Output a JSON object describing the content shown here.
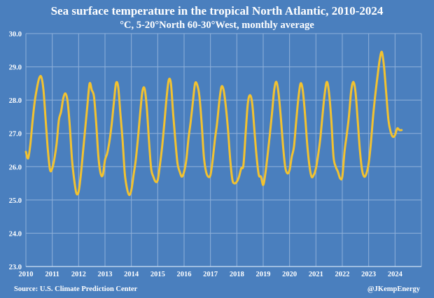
{
  "colors": {
    "background": "#4a7fbe",
    "line": "#f2c230",
    "grid": "#8fb0da",
    "text": "#ffffff"
  },
  "chart_data": {
    "type": "line",
    "title": "Sea surface temperature in the tropical North Atlantic, 2010-2024",
    "subtitle": "°C, 5-20°North 60-30°West, monthly average",
    "xlabel": "",
    "ylabel": "",
    "ylim": [
      23.0,
      30.0
    ],
    "yticks": [
      "23.0",
      "24.0",
      "25.0",
      "26.0",
      "27.0",
      "28.0",
      "29.0",
      "30.0"
    ],
    "xticks": [
      "2010",
      "2011",
      "2012",
      "2013",
      "2014",
      "2015",
      "2016",
      "2017",
      "2018",
      "2019",
      "2020",
      "2021",
      "2022",
      "2023",
      "2024"
    ],
    "xlim": [
      "2010-01",
      "2024-12"
    ],
    "grid": true,
    "legend": "none",
    "source": "Source: U.S. Climate Prediction Center",
    "credit": "@JKempEnergy",
    "series": [
      {
        "x": [
          "2010-01",
          "2010-02",
          "2010-03",
          "2010-04",
          "2010-05",
          "2010-06",
          "2010-07",
          "2010-08",
          "2010-09",
          "2010-10",
          "2010-11",
          "2010-12",
          "2011-01",
          "2011-02",
          "2011-03",
          "2011-04",
          "2011-05",
          "2011-06",
          "2011-07",
          "2011-08",
          "2011-09",
          "2011-10",
          "2011-11",
          "2011-12",
          "2012-01",
          "2012-02",
          "2012-03",
          "2012-04",
          "2012-05",
          "2012-06",
          "2012-07",
          "2012-08",
          "2012-09",
          "2012-10",
          "2012-11",
          "2012-12",
          "2013-01",
          "2013-02",
          "2013-03",
          "2013-04",
          "2013-05",
          "2013-06",
          "2013-07",
          "2013-08",
          "2013-09",
          "2013-10",
          "2013-11",
          "2013-12",
          "2014-01",
          "2014-02",
          "2014-03",
          "2014-04",
          "2014-05",
          "2014-06",
          "2014-07",
          "2014-08",
          "2014-09",
          "2014-10",
          "2014-11",
          "2014-12",
          "2015-01",
          "2015-02",
          "2015-03",
          "2015-04",
          "2015-05",
          "2015-06",
          "2015-07",
          "2015-08",
          "2015-09",
          "2015-10",
          "2015-11",
          "2015-12",
          "2016-01",
          "2016-02",
          "2016-03",
          "2016-04",
          "2016-05",
          "2016-06",
          "2016-07",
          "2016-08",
          "2016-09",
          "2016-10",
          "2016-11",
          "2016-12",
          "2017-01",
          "2017-02",
          "2017-03",
          "2017-04",
          "2017-05",
          "2017-06",
          "2017-07",
          "2017-08",
          "2017-09",
          "2017-10",
          "2017-11",
          "2017-12",
          "2018-01",
          "2018-02",
          "2018-03",
          "2018-04",
          "2018-05",
          "2018-06",
          "2018-07",
          "2018-08",
          "2018-09",
          "2018-10",
          "2018-11",
          "2018-12",
          "2019-01",
          "2019-02",
          "2019-03",
          "2019-04",
          "2019-05",
          "2019-06",
          "2019-07",
          "2019-08",
          "2019-09",
          "2019-10",
          "2019-11",
          "2019-12",
          "2020-01",
          "2020-02",
          "2020-03",
          "2020-04",
          "2020-05",
          "2020-06",
          "2020-07",
          "2020-08",
          "2020-09",
          "2020-10",
          "2020-11",
          "2020-12",
          "2021-01",
          "2021-02",
          "2021-03",
          "2021-04",
          "2021-05",
          "2021-06",
          "2021-07",
          "2021-08",
          "2021-09",
          "2021-10",
          "2021-11",
          "2021-12",
          "2022-01",
          "2022-02",
          "2022-03",
          "2022-04",
          "2022-05",
          "2022-06",
          "2022-07",
          "2022-08",
          "2022-09",
          "2022-10",
          "2022-11",
          "2022-12",
          "2023-01",
          "2023-02",
          "2023-03",
          "2023-04",
          "2023-05",
          "2023-06",
          "2023-07",
          "2023-08",
          "2023-09",
          "2023-10",
          "2023-11",
          "2023-12",
          "2024-01",
          "2024-02",
          "2024-03",
          "2024-04"
        ],
        "values": [
          26.45,
          26.25,
          26.65,
          27.35,
          27.95,
          28.35,
          28.65,
          28.7,
          28.3,
          27.4,
          26.5,
          25.9,
          25.95,
          26.25,
          26.7,
          27.4,
          27.65,
          28.05,
          28.2,
          27.95,
          27.2,
          26.2,
          25.6,
          25.2,
          25.25,
          25.75,
          26.45,
          27.15,
          27.85,
          28.5,
          28.3,
          28.1,
          27.3,
          26.3,
          25.8,
          25.75,
          26.2,
          26.4,
          26.75,
          27.25,
          27.9,
          28.5,
          28.4,
          27.6,
          26.8,
          25.8,
          25.35,
          25.15,
          25.3,
          25.75,
          26.2,
          26.85,
          27.6,
          28.25,
          28.35,
          27.8,
          26.8,
          25.95,
          25.7,
          25.55,
          25.6,
          26.05,
          26.6,
          27.3,
          28.05,
          28.6,
          28.5,
          27.6,
          26.8,
          26.1,
          25.85,
          25.7,
          25.85,
          26.2,
          26.85,
          27.35,
          27.95,
          28.5,
          28.45,
          28.1,
          27.3,
          26.3,
          25.85,
          25.7,
          25.75,
          26.2,
          26.8,
          27.3,
          27.95,
          28.4,
          28.3,
          27.8,
          27.1,
          26.2,
          25.6,
          25.5,
          25.55,
          25.7,
          25.95,
          26.05,
          27.0,
          27.9,
          28.15,
          27.9,
          27.1,
          26.3,
          25.75,
          25.7,
          25.45,
          25.8,
          26.35,
          26.95,
          27.6,
          28.3,
          28.55,
          28.2,
          27.5,
          26.65,
          26.0,
          25.8,
          25.9,
          26.3,
          26.6,
          27.35,
          28.05,
          28.5,
          28.3,
          27.6,
          26.7,
          26.05,
          25.7,
          25.75,
          25.95,
          26.35,
          26.85,
          27.55,
          28.2,
          28.55,
          28.2,
          27.4,
          26.3,
          26.0,
          25.85,
          25.65,
          25.7,
          26.45,
          26.95,
          27.5,
          28.25,
          28.55,
          28.25,
          27.4,
          26.5,
          25.9,
          25.7,
          25.8,
          26.1,
          26.7,
          27.5,
          28.15,
          28.7,
          29.2,
          29.45,
          29.0,
          28.2,
          27.4,
          27.05,
          26.9,
          26.95,
          27.15,
          27.1,
          27.1
        ]
      }
    ]
  }
}
